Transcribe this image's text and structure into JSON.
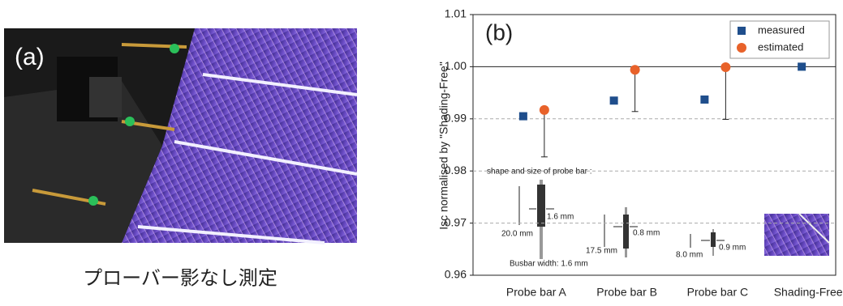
{
  "panel_a": {
    "label": "(a)",
    "caption": "プローバー影なし測定"
  },
  "chart_data": {
    "type": "scatter",
    "panel_label": "(b)",
    "y_label": "Isc normalised by \"Shading-Free\"",
    "categories": [
      "Probe bar A",
      "Probe bar B",
      "Probe bar C",
      "Shading-Free"
    ],
    "series": [
      {
        "name": "measured",
        "color": "#1f4e8c",
        "marker": "square",
        "values": [
          0.9905,
          0.9935,
          0.9937,
          1.0
        ]
      },
      {
        "name": "estimated",
        "color": "#e8622a",
        "marker": "circle",
        "values": [
          0.9917,
          0.9994,
          0.9999,
          null
        ],
        "errors": [
          0.009,
          0.008,
          0.01,
          null
        ]
      }
    ],
    "ylim": [
      0.96,
      1.01
    ],
    "yticks": [
      0.96,
      0.97,
      0.98,
      0.99,
      {
        "value": 1,
        "label": "1.00"
      },
      1.01
    ],
    "grid": true,
    "legend": "top-right",
    "annotations": [
      "shape and size of probe bar :",
      "1.6 mm",
      "20.0 mm",
      "0.8 mm",
      "17.5 mm",
      "0.9 mm",
      "8.0 mm",
      "Busbar width: 1.6 mm"
    ]
  }
}
